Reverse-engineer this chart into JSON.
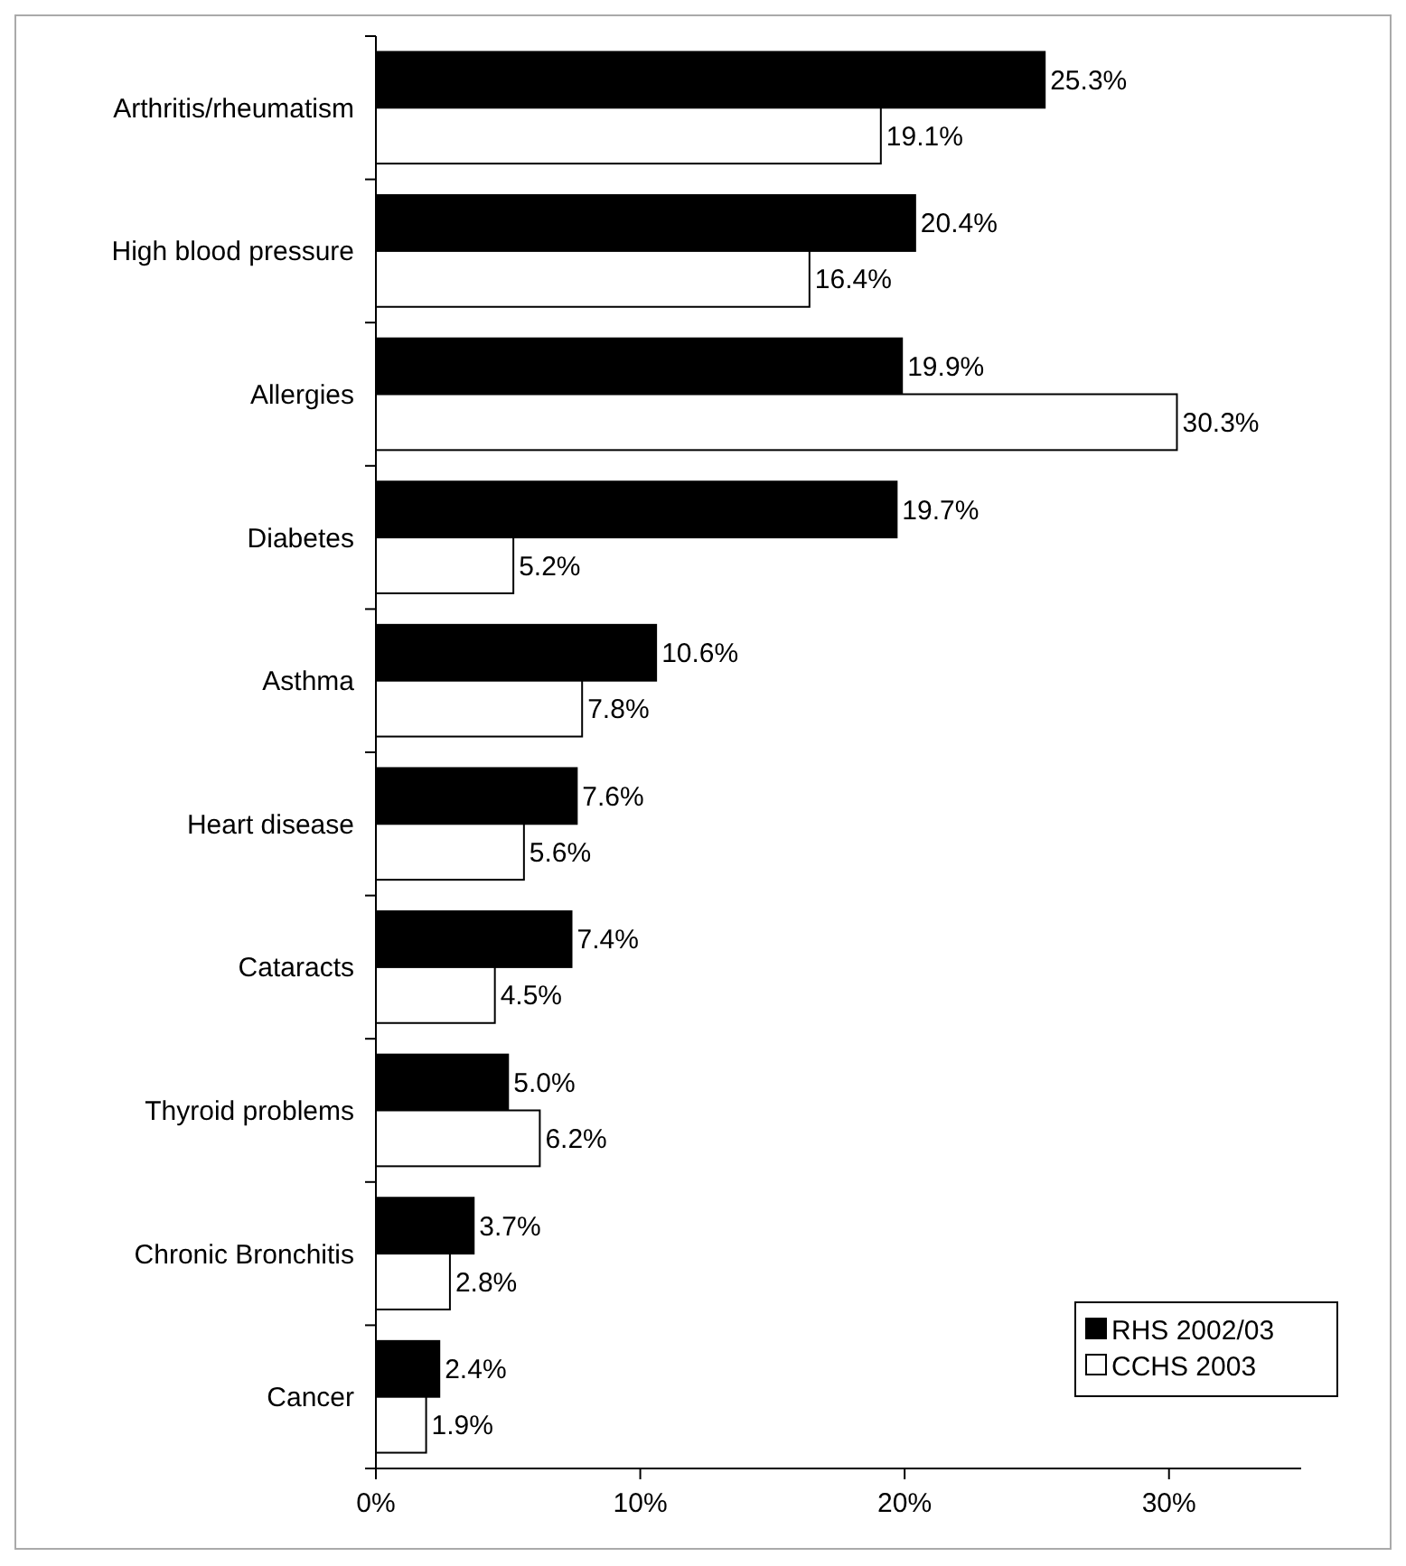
{
  "chart_data": {
    "type": "bar",
    "orientation": "horizontal",
    "categories": [
      "Arthritis/rheumatism",
      "High blood pressure",
      "Allergies",
      "Diabetes",
      "Asthma",
      "Heart disease",
      "Cataracts",
      "Thyroid problems",
      "Chronic Bronchitis",
      "Cancer"
    ],
    "series": [
      {
        "name": "RHS 2002/03",
        "color": "#000000",
        "values": [
          25.3,
          20.4,
          19.9,
          19.7,
          10.6,
          7.6,
          7.4,
          5.0,
          3.7,
          2.4
        ],
        "value_labels": [
          "25.3%",
          "20.4%",
          "19.9%",
          "19.7%",
          "10.6%",
          "7.6%",
          "7.4%",
          "5.0%",
          "3.7%",
          "2.4%"
        ]
      },
      {
        "name": "CCHS 2003",
        "color": "#ffffff",
        "values": [
          19.1,
          16.4,
          30.3,
          5.2,
          7.8,
          5.6,
          4.5,
          6.2,
          2.8,
          1.9
        ],
        "value_labels": [
          "19.1%",
          "16.4%",
          "30.3%",
          "5.2%",
          "7.8%",
          "5.6%",
          "4.5%",
          "6.2%",
          "2.8%",
          "1.9%"
        ]
      }
    ],
    "xlim": [
      0,
      35
    ],
    "xticks": [
      {
        "value": 0,
        "label": "0%"
      },
      {
        "value": 10,
        "label": "10%"
      },
      {
        "value": 20,
        "label": "20%"
      },
      {
        "value": 30,
        "label": "30%"
      }
    ],
    "grid": false,
    "legend": "bottom right"
  }
}
